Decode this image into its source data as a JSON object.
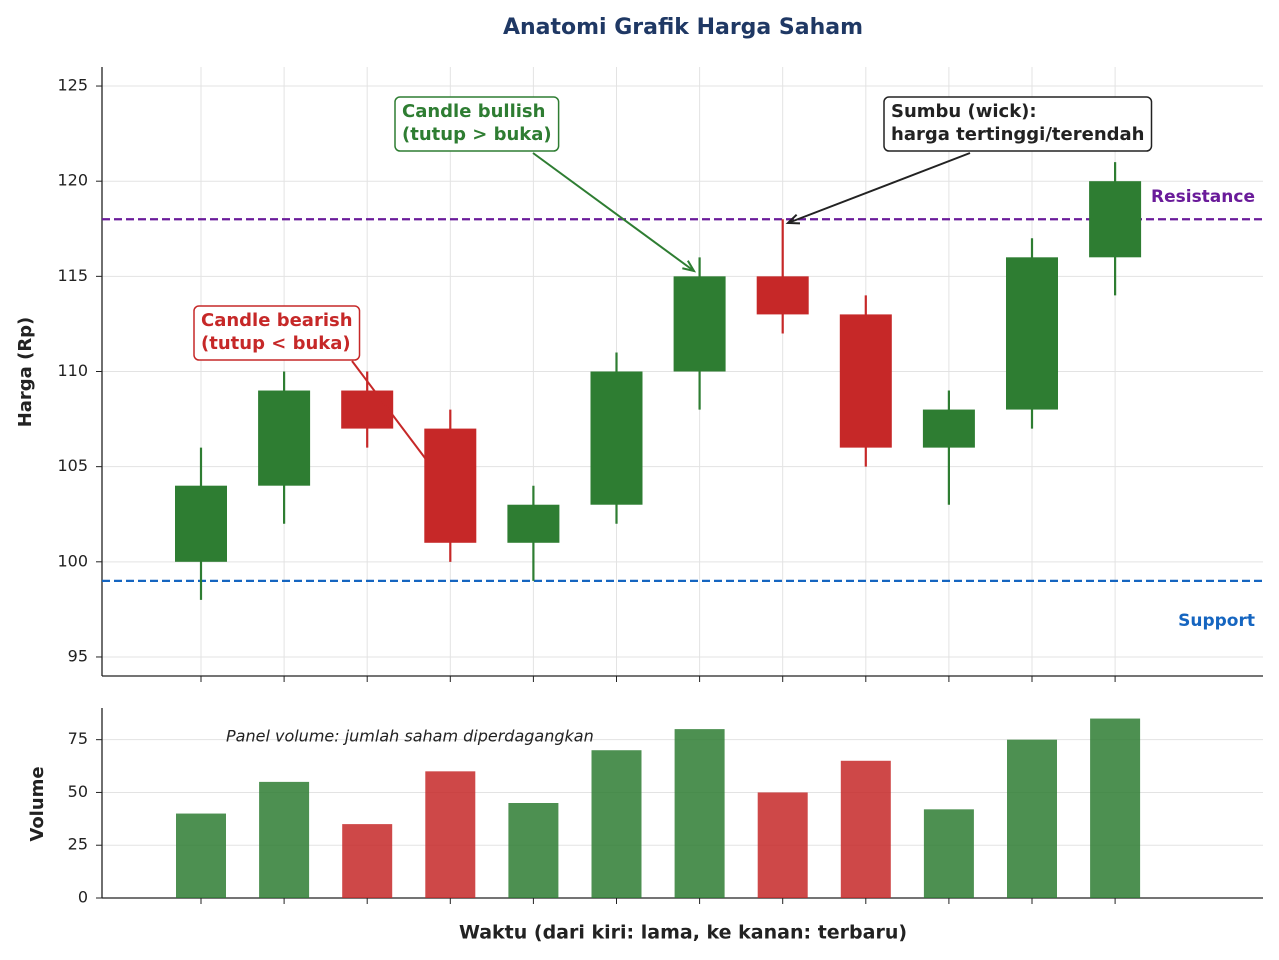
{
  "chart_data": [
    {
      "type": "candlestick",
      "title": "Anatomi Grafik Harga Saham",
      "ylabel": "Harga (Rp)",
      "categories": [
        null,
        null,
        null,
        null,
        null,
        null,
        null,
        null,
        null,
        null,
        null,
        null
      ],
      "open": [
        100,
        104,
        109,
        107,
        101,
        103,
        110,
        115,
        113,
        106,
        108,
        116
      ],
      "high": [
        106,
        110,
        110,
        108,
        104,
        111,
        116,
        118,
        114,
        109,
        117,
        121
      ],
      "low": [
        98,
        102,
        106,
        100,
        99,
        102,
        108,
        112,
        105,
        103,
        107,
        114
      ],
      "close": [
        104,
        109,
        107,
        101,
        103,
        110,
        115,
        113,
        106,
        108,
        116,
        120
      ],
      "up_color": "#2e7d32",
      "down_color": "#c62828",
      "ylim": [
        94,
        126
      ],
      "yticks": [
        95,
        100,
        105,
        110,
        115,
        120,
        125
      ],
      "grid": true,
      "hlines": [
        {
          "name": "Resistance",
          "value": 118,
          "color": "#6a1b9a"
        },
        {
          "name": "Support",
          "value": 99,
          "color": "#1565c0"
        }
      ],
      "annotations": [
        {
          "text": [
            "Candle bearish",
            "(tutup < buka)"
          ],
          "color": "#c62828"
        },
        {
          "text": [
            "Candle bullish",
            "(tutup > buka)"
          ],
          "color": "#2e7d32"
        },
        {
          "text": [
            "Sumbu (wick):",
            "harga tertinggi/terendah"
          ],
          "color": "#222222"
        }
      ]
    },
    {
      "type": "bar",
      "ylabel": "Volume",
      "xlabel": "Waktu (dari kiri: lama, ke kanan: terbaru)",
      "note": "Panel volume: jumlah saham diperdagangkan",
      "categories": [
        null,
        null,
        null,
        null,
        null,
        null,
        null,
        null,
        null,
        null,
        null,
        null
      ],
      "values": [
        40,
        55,
        35,
        60,
        45,
        70,
        80,
        50,
        65,
        42,
        75,
        85
      ],
      "ylim": [
        0,
        90
      ],
      "yticks": [
        0,
        25,
        50,
        75
      ],
      "grid": true
    }
  ]
}
